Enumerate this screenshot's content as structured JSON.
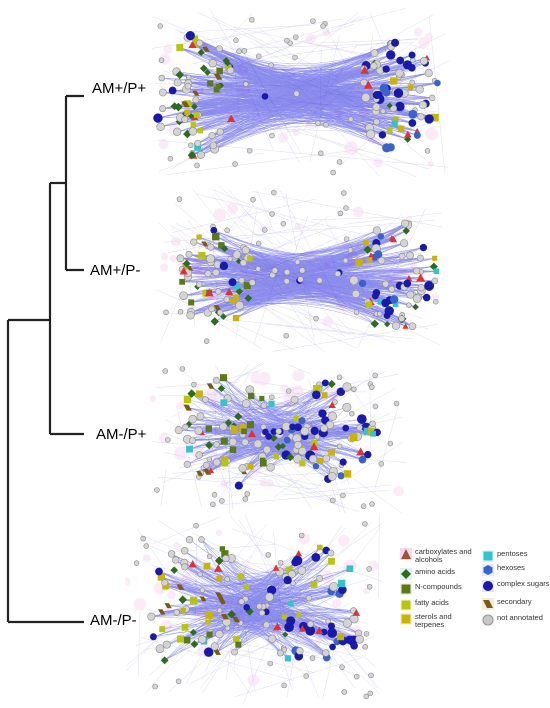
{
  "dendrogram": {
    "leaves": [
      {
        "id": "am_plus_p_plus",
        "label": "AM+/P+"
      },
      {
        "id": "am_plus_p_minus",
        "label": "AM+/P-"
      },
      {
        "id": "am_minus_p_plus",
        "label": "AM-/P+"
      },
      {
        "id": "am_minus_p_minus",
        "label": "AM-/P-"
      }
    ]
  },
  "legend": {
    "items": [
      {
        "id": "carboxylates",
        "label": "carboxylates and alcohols",
        "shape": "triangle",
        "color": "#a0522d",
        "halo": "#f4c6f0"
      },
      {
        "id": "amino_acids",
        "label": "amino acids",
        "shape": "diamond",
        "color": "#2e6b1f",
        "halo": "#cfeee8"
      },
      {
        "id": "n_compounds",
        "label": "N-compounds",
        "shape": "square",
        "color": "#5a7a1a",
        "halo": "#e8f0d0"
      },
      {
        "id": "fatty_acids",
        "label": "fatty acids",
        "shape": "square",
        "color": "#b8c40e",
        "halo": "#f3f6c8"
      },
      {
        "id": "sterols_terpenes",
        "label": "sterols and terpenes",
        "shape": "square",
        "color": "#c9b20a",
        "halo": "#f7efc0"
      },
      {
        "id": "pentoses",
        "label": "pentoses",
        "shape": "square",
        "color": "#35c2cc",
        "halo": "#d4f3f5"
      },
      {
        "id": "hexoses",
        "label": "hexoses",
        "shape": "hexagon",
        "color": "#3a62c8",
        "halo": "#dbe3f7"
      },
      {
        "id": "complex_sugars",
        "label": "complex sugars",
        "shape": "circle",
        "color": "#1a1aa8",
        "halo": "#d8d8f2"
      },
      {
        "id": "secondary",
        "label": "secondary",
        "shape": "parallelogram",
        "color": "#7a5a10",
        "halo": "#efe6cc"
      },
      {
        "id": "not_annotated",
        "label": "not annotated",
        "shape": "circle",
        "color": "#c8c8c8",
        "halo": "#eeeeee"
      }
    ]
  }
}
